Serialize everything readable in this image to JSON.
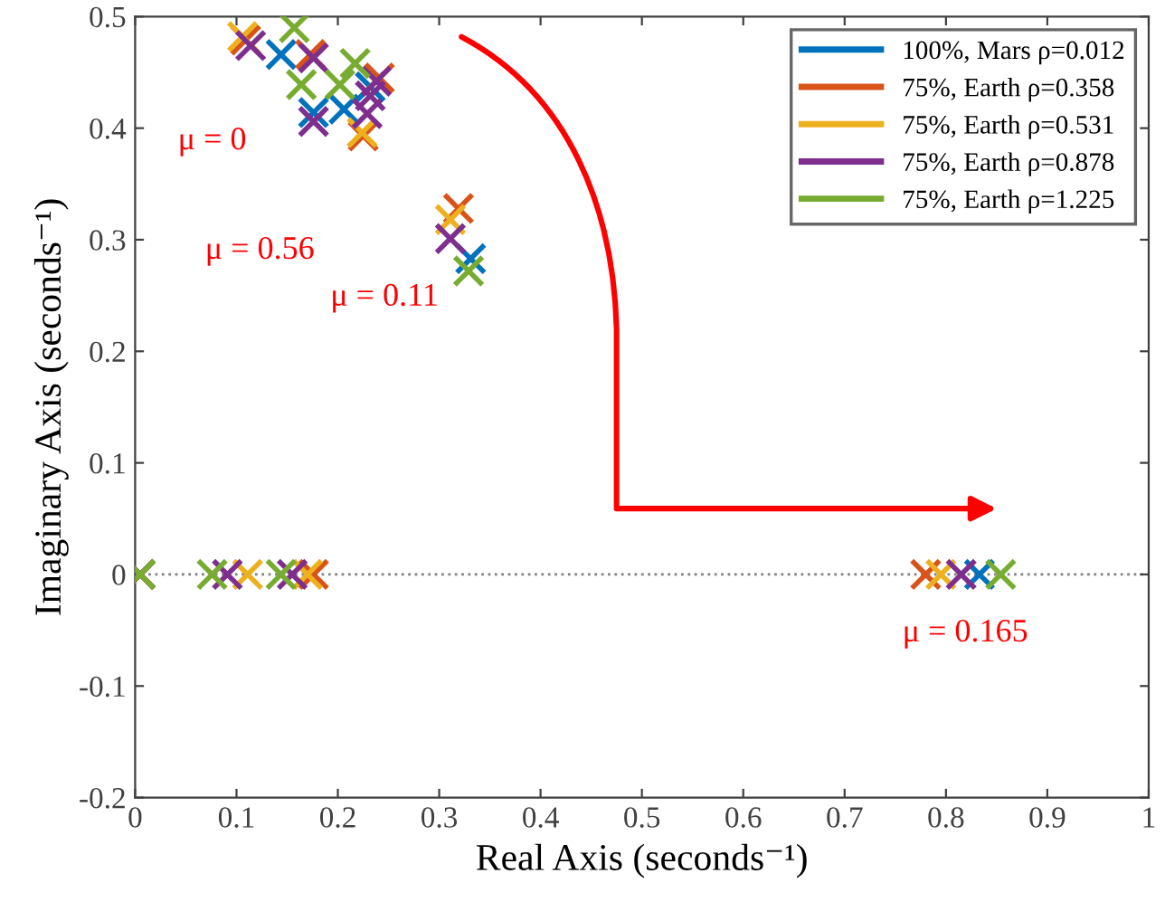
{
  "chart_data": {
    "type": "scatter",
    "xlabel": "Real Axis (seconds⁻¹)",
    "ylabel": "Imaginary Axis (seconds⁻¹)",
    "xlim": [
      0,
      1
    ],
    "ylim": [
      -0.2,
      0.5
    ],
    "xticks": [
      0,
      0.1,
      0.2,
      0.3,
      0.4,
      0.5,
      0.6,
      0.7,
      0.8,
      0.9,
      1
    ],
    "yticks": [
      -0.2,
      -0.1,
      0,
      0.1,
      0.2,
      0.3,
      0.4,
      0.5
    ],
    "marker": "cross",
    "legend": "top right",
    "grid": false,
    "series": [
      {
        "name": "100%, Mars ρ=0.012",
        "color": "#0072bd",
        "x": [
          0.005,
          0.833,
          0.144,
          0.176,
          0.206,
          0.232,
          0.331
        ],
        "values": [
          0,
          0,
          0.466,
          0.414,
          0.417,
          0.437,
          0.283
        ]
      },
      {
        "name": "75%, Earth ρ=0.358",
        "color": "#d95319",
        "x": [
          0.005,
          0.176,
          0.78,
          0.109,
          0.173,
          0.241,
          0.225,
          0.319
        ],
        "values": [
          0,
          0,
          0,
          0.479,
          0.466,
          0.445,
          0.393,
          0.328
        ]
      },
      {
        "name": "75%, Earth ρ=0.531",
        "color": "#edb120",
        "x": [
          0.005,
          0.111,
          0.17,
          0.795,
          0.106,
          0.224,
          0.311
        ],
        "values": [
          0,
          0,
          0,
          0,
          0.482,
          0.396,
          0.318
        ]
      },
      {
        "name": "75%, Earth ρ=0.878",
        "color": "#7e2f8e",
        "x": [
          0.005,
          0.091,
          0.155,
          0.815,
          0.114,
          0.176,
          0.238,
          0.232,
          0.176,
          0.229,
          0.311
        ],
        "values": [
          0,
          0,
          0,
          0,
          0.474,
          0.463,
          0.442,
          0.429,
          0.406,
          0.413,
          0.301
        ]
      },
      {
        "name": "75%, Earth ρ=1.225",
        "color": "#77ac30",
        "x": [
          0.005,
          0.076,
          0.144,
          0.854,
          0.157,
          0.164,
          0.217,
          0.202,
          0.329
        ],
        "values": [
          0,
          0,
          0,
          0,
          0.49,
          0.439,
          0.458,
          0.439,
          0.272
        ]
      }
    ],
    "ref_lines": [
      {
        "axis": "y",
        "value": 0,
        "color": "#808080",
        "line_style": "dotted"
      }
    ],
    "annotations": [
      "μ = 0",
      "μ = 0.56",
      "μ = 0.11",
      "μ = 0.165"
    ]
  }
}
